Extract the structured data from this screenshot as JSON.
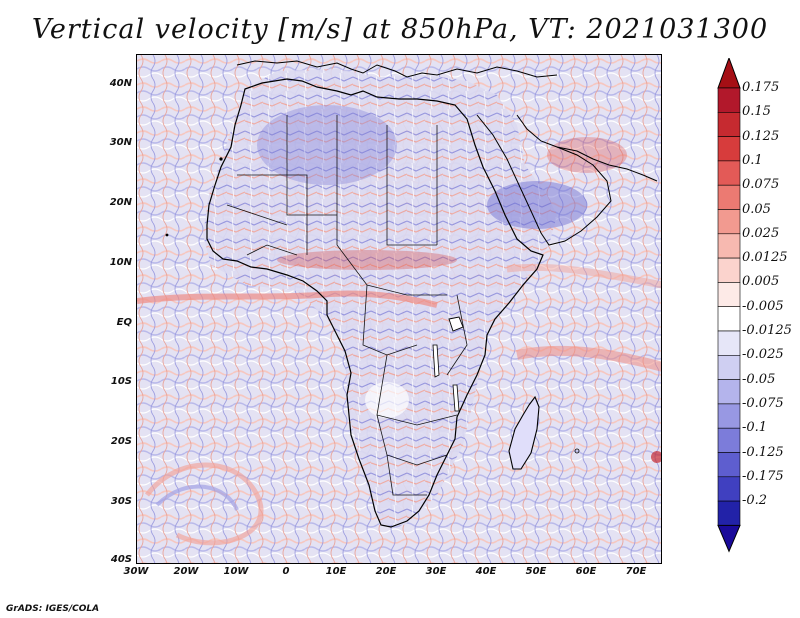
{
  "title": "Vertical velocity [m/s] at 850hPa, VT: 2021031300",
  "credit": "GrADS: IGES/COLA",
  "map": {
    "region": "Africa",
    "lon_range": [
      -30,
      75
    ],
    "lat_range": [
      -40,
      45
    ]
  },
  "axes": {
    "lat_ticks": [
      {
        "value": 40,
        "label": "40N"
      },
      {
        "value": 30,
        "label": "30N"
      },
      {
        "value": 20,
        "label": "20N"
      },
      {
        "value": 10,
        "label": "10N"
      },
      {
        "value": 0,
        "label": "EQ"
      },
      {
        "value": -10,
        "label": "10S"
      },
      {
        "value": -20,
        "label": "20S"
      },
      {
        "value": -30,
        "label": "30S"
      },
      {
        "value": -40,
        "label": "40S"
      }
    ],
    "lon_ticks": [
      {
        "value": -30,
        "label": "30W"
      },
      {
        "value": -20,
        "label": "20W"
      },
      {
        "value": -10,
        "label": "10W"
      },
      {
        "value": 0,
        "label": "0"
      },
      {
        "value": 10,
        "label": "10E"
      },
      {
        "value": 20,
        "label": "20E"
      },
      {
        "value": 30,
        "label": "30E"
      },
      {
        "value": 40,
        "label": "40E"
      },
      {
        "value": 50,
        "label": "50E"
      },
      {
        "value": 60,
        "label": "60E"
      },
      {
        "value": 70,
        "label": "70E"
      }
    ]
  },
  "colorbar": {
    "unit": "m/s",
    "levels": [
      {
        "label": "0.175",
        "color": "#b2182b"
      },
      {
        "label": "0.15",
        "color": "#c62a30"
      },
      {
        "label": "0.125",
        "color": "#d73c3c"
      },
      {
        "label": "0.1",
        "color": "#e35a57"
      },
      {
        "label": "0.075",
        "color": "#ec7a72"
      },
      {
        "label": "0.05",
        "color": "#f29a90"
      },
      {
        "label": "0.025",
        "color": "#f7b9b0"
      },
      {
        "label": "0.0125",
        "color": "#fbd3cd"
      },
      {
        "label": "0.005",
        "color": "#fdeae7"
      },
      {
        "label": "-0.005",
        "color": "#ffffff"
      },
      {
        "label": "-0.0125",
        "color": "#e6e6f8"
      },
      {
        "label": "-0.025",
        "color": "#cfcff2"
      },
      {
        "label": "-0.05",
        "color": "#b4b4ec"
      },
      {
        "label": "-0.075",
        "color": "#9898e3"
      },
      {
        "label": "-0.1",
        "color": "#7c7cda"
      },
      {
        "label": "-0.125",
        "color": "#5e5ecf"
      },
      {
        "label": "-0.175",
        "color": "#4040c0"
      },
      {
        "label": "-0.2",
        "color": "#2222a8"
      }
    ],
    "end_colors": {
      "top": "#a50f15",
      "bottom": "#1a0a9a"
    }
  }
}
